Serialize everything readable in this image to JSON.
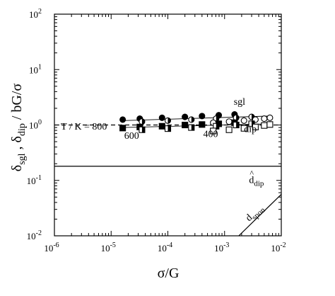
{
  "chart_data": {
    "type": "scatter",
    "x_scale": "log",
    "y_scale": "log",
    "xlim": [
      1e-06,
      0.01
    ],
    "ylim": [
      0.01,
      100
    ],
    "xlabel": "σ/G",
    "ylabel": {
      "main": "δ",
      "sub1": "sgl",
      "sep": " , δ",
      "sub2": "dip",
      "tail": " / bG/σ"
    },
    "x_ticks": [
      {
        "value": 1e-06,
        "base": "10",
        "exp": "-6"
      },
      {
        "value": 1e-05,
        "base": "10",
        "exp": "-5"
      },
      {
        "value": 0.0001,
        "base": "10",
        "exp": "-4"
      },
      {
        "value": 0.001,
        "base": "10",
        "exp": "-3"
      },
      {
        "value": 0.01,
        "base": "10",
        "exp": "-2"
      }
    ],
    "y_ticks": [
      {
        "value": 0.01,
        "base": "10",
        "exp": "-2"
      },
      {
        "value": 0.1,
        "base": "10",
        "exp": "-1"
      },
      {
        "value": 1,
        "base": "10",
        "exp": "0"
      },
      {
        "value": 10,
        "base": "10",
        "exp": "1"
      },
      {
        "value": 100,
        "base": "10",
        "exp": "2"
      }
    ],
    "grid": false,
    "series": [
      {
        "marker": "circle-filled",
        "label": "800",
        "x": [
          1.6e-05,
          3.2e-05,
          7.9e-05,
          0.0002,
          0.0004,
          0.00079,
          0.0015
        ],
        "y": [
          1.25,
          1.3,
          1.35,
          1.4,
          1.45,
          1.5,
          1.55
        ]
      },
      {
        "marker": "circle-half",
        "label": "600",
        "x": [
          3.5e-05,
          0.0001,
          0.00026,
          0.00071,
          0.0016,
          0.003
        ],
        "y": [
          1.15,
          1.2,
          1.25,
          1.3,
          1.35,
          1.4
        ]
      },
      {
        "marker": "circle-open",
        "label": "400",
        "x": [
          0.00063,
          0.0012,
          0.0022,
          0.0035,
          0.005,
          0.0063
        ],
        "y": [
          1.1,
          1.15,
          1.2,
          1.25,
          1.3,
          1.35
        ]
      },
      {
        "marker": "square-filled",
        "label": "800",
        "x": [
          1.6e-05,
          3.2e-05,
          7.9e-05,
          0.0002,
          0.0004,
          0.00079,
          0.0015
        ],
        "y": [
          0.88,
          0.92,
          0.95,
          1.0,
          1.02,
          1.05,
          1.1
        ]
      },
      {
        "marker": "square-half",
        "label": "600",
        "x": [
          3.5e-05,
          0.0001,
          0.00026,
          0.00071,
          0.0016,
          0.003
        ],
        "y": [
          0.82,
          0.86,
          0.9,
          0.95,
          1.0,
          1.05
        ]
      },
      {
        "marker": "square-open",
        "label": "400",
        "x": [
          0.00063,
          0.0012,
          0.0022,
          0.0035,
          0.005,
          0.0063
        ],
        "y": [
          0.78,
          0.82,
          0.87,
          0.92,
          0.98,
          1.02
        ]
      }
    ],
    "lines": [
      {
        "kind": "reference",
        "dash": true,
        "x": [
          1e-06,
          0.01
        ],
        "y": [
          1,
          1
        ]
      },
      {
        "kind": "d_dip",
        "dash": false,
        "x": [
          1e-06,
          0.01
        ],
        "y": [
          0.18,
          0.18
        ]
      },
      {
        "kind": "d_spon",
        "dash": false,
        "x": [
          0.00178,
          0.01
        ],
        "y": [
          0.01,
          0.056
        ]
      },
      {
        "kind": "sgl-fit",
        "dash": false,
        "x": [
          1.6e-05,
          0.0063
        ],
        "y": [
          1.2,
          1.45
        ]
      },
      {
        "kind": "dip-fit",
        "dash": false,
        "x": [
          1.6e-05,
          0.0063
        ],
        "y": [
          0.9,
          1.05
        ]
      }
    ],
    "annotations": [
      {
        "name": "temperature-label",
        "text": "T / K = 800",
        "x": 1.3e-06,
        "y": 0.82
      },
      {
        "name": "label-600",
        "text": "600",
        "x": 1.7e-05,
        "y": 0.56
      },
      {
        "name": "label-400",
        "text": "400",
        "x": 0.00042,
        "y": 0.61
      },
      {
        "name": "label-sgl",
        "text": "sgl",
        "x": 0.00145,
        "y": 2.3
      },
      {
        "name": "label-dip",
        "text": "dip",
        "x": 0.0022,
        "y": 0.74
      }
    ],
    "d_dip_label": {
      "main": "d",
      "hat": "^",
      "sub": "dip",
      "x": 0.0027,
      "y": 0.09
    },
    "d_spon_label": {
      "main": "d",
      "sub": "spon",
      "x": 0.0027,
      "y": 0.018
    }
  }
}
